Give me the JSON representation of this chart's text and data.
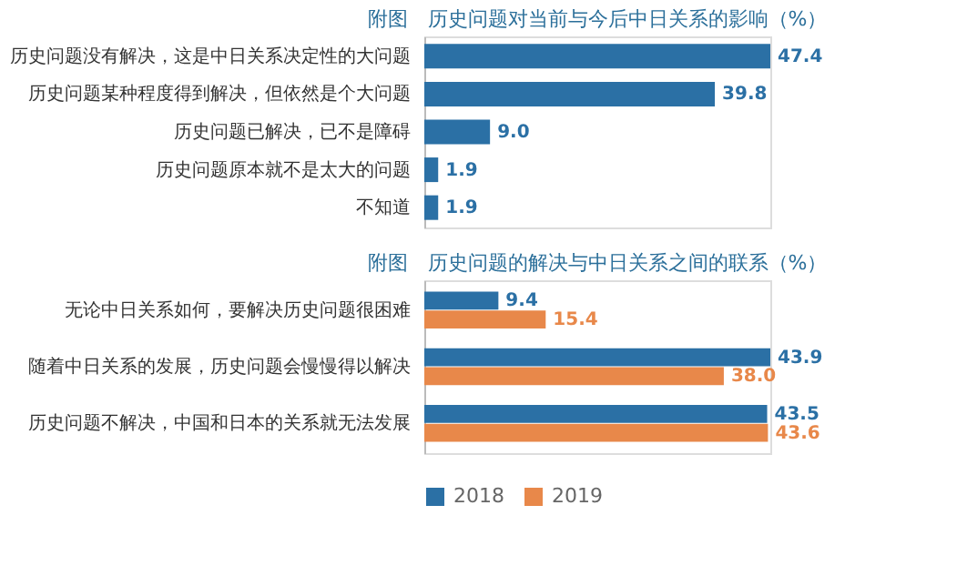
{
  "chart_data": [
    {
      "type": "bar",
      "orientation": "horizontal",
      "title": "附图　历史问题对当前与今后中日关系的影响（%）",
      "categories": [
        "历史问题没有解决，这是中日关系决定性的大问题",
        "历史问题某种程度得到解决，但依然是个大问题",
        "历史问题已解决，已不是障碍",
        "历史问题原本就不是太大的问题",
        "不知道"
      ],
      "series": [
        {
          "color": "#2b70a5",
          "values": [
            47.4,
            39.8,
            9.0,
            1.9,
            1.9
          ],
          "value_labels": [
            "47.4",
            "39.8",
            "9.0",
            "1.9",
            "1.9"
          ]
        }
      ],
      "tick_labels": "y",
      "grid": false
    },
    {
      "type": "bar",
      "orientation": "horizontal",
      "title": "附图　历史问题的解决与中日关系之间的联系（%）",
      "categories": [
        "无论中日关系如何，要解决历史问题很困难",
        "随着中日关系的发展，历史问题会慢慢得以解决",
        "历史问题不解决，中国和日本的关系就无法发展"
      ],
      "series": [
        {
          "name": "2018",
          "color": "#2b70a5",
          "values": [
            9.4,
            43.9,
            43.5
          ],
          "value_labels": [
            "9.4",
            "43.9",
            "43.5"
          ]
        },
        {
          "name": "2019",
          "color": "#e8884a",
          "values": [
            15.4,
            38.0,
            43.6
          ],
          "value_labels": [
            "15.4",
            "38.0",
            "43.6"
          ]
        }
      ],
      "tick_labels": "y",
      "grid": false,
      "legend": "bottom"
    }
  ]
}
